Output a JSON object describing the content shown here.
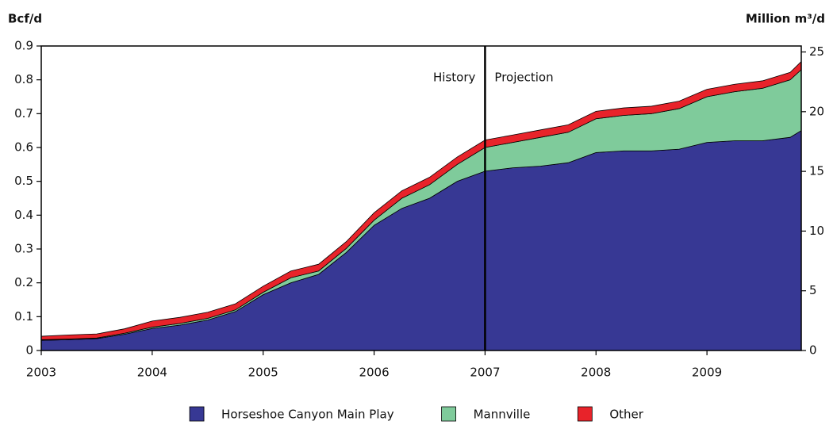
{
  "chart_data": {
    "type": "stacked_area",
    "ylabel": "Bcf/d",
    "y2label": "Million m³/d",
    "x": [
      2003,
      2003.25,
      2003.5,
      2003.75,
      2004,
      2004.25,
      2004.5,
      2004.75,
      2005,
      2005.25,
      2005.5,
      2005.75,
      2006,
      2006.25,
      2006.5,
      2006.75,
      2007,
      2007.25,
      2007.5,
      2007.75,
      2008,
      2008.25,
      2008.5,
      2008.75,
      2009,
      2009.25,
      2009.5,
      2009.75,
      2009.85
    ],
    "series": [
      {
        "name": "Horseshoe Canyon Main Play",
        "color": "#373894",
        "values": [
          0.03,
          0.032,
          0.035,
          0.048,
          0.065,
          0.075,
          0.09,
          0.115,
          0.165,
          0.2,
          0.225,
          0.29,
          0.37,
          0.42,
          0.45,
          0.5,
          0.53,
          0.54,
          0.545,
          0.555,
          0.585,
          0.59,
          0.59,
          0.595,
          0.615,
          0.62,
          0.62,
          0.63,
          0.65
        ]
      },
      {
        "name": "Mannville",
        "color": "#7fcb9b",
        "values": [
          0.002,
          0.002,
          0.002,
          0.003,
          0.004,
          0.005,
          0.005,
          0.005,
          0.007,
          0.015,
          0.01,
          0.012,
          0.015,
          0.03,
          0.04,
          0.05,
          0.07,
          0.075,
          0.085,
          0.09,
          0.1,
          0.105,
          0.11,
          0.12,
          0.135,
          0.145,
          0.155,
          0.17,
          0.18
        ]
      },
      {
        "name": "Other",
        "color": "#e8232a",
        "values": [
          0.01,
          0.012,
          0.012,
          0.013,
          0.018,
          0.018,
          0.018,
          0.018,
          0.018,
          0.02,
          0.02,
          0.02,
          0.022,
          0.022,
          0.022,
          0.022,
          0.022,
          0.022,
          0.022,
          0.022,
          0.022,
          0.022,
          0.022,
          0.022,
          0.022,
          0.022,
          0.022,
          0.022,
          0.024
        ]
      }
    ],
    "xlim": [
      2003,
      2009.85
    ],
    "xticks": [
      2003,
      2004,
      2005,
      2006,
      2007,
      2008,
      2009
    ],
    "ylim": [
      0,
      0.9
    ],
    "yticks": [
      0,
      0.1,
      0.2,
      0.3,
      0.4,
      0.5,
      0.6,
      0.7,
      0.8,
      0.9
    ],
    "y2lim": [
      0,
      25.5
    ],
    "y2ticks": [
      0,
      5,
      10,
      15,
      20,
      25
    ],
    "annotations": [
      {
        "text": "History",
        "x": 2007
      },
      {
        "text": "Projection",
        "x": 2007
      }
    ]
  }
}
